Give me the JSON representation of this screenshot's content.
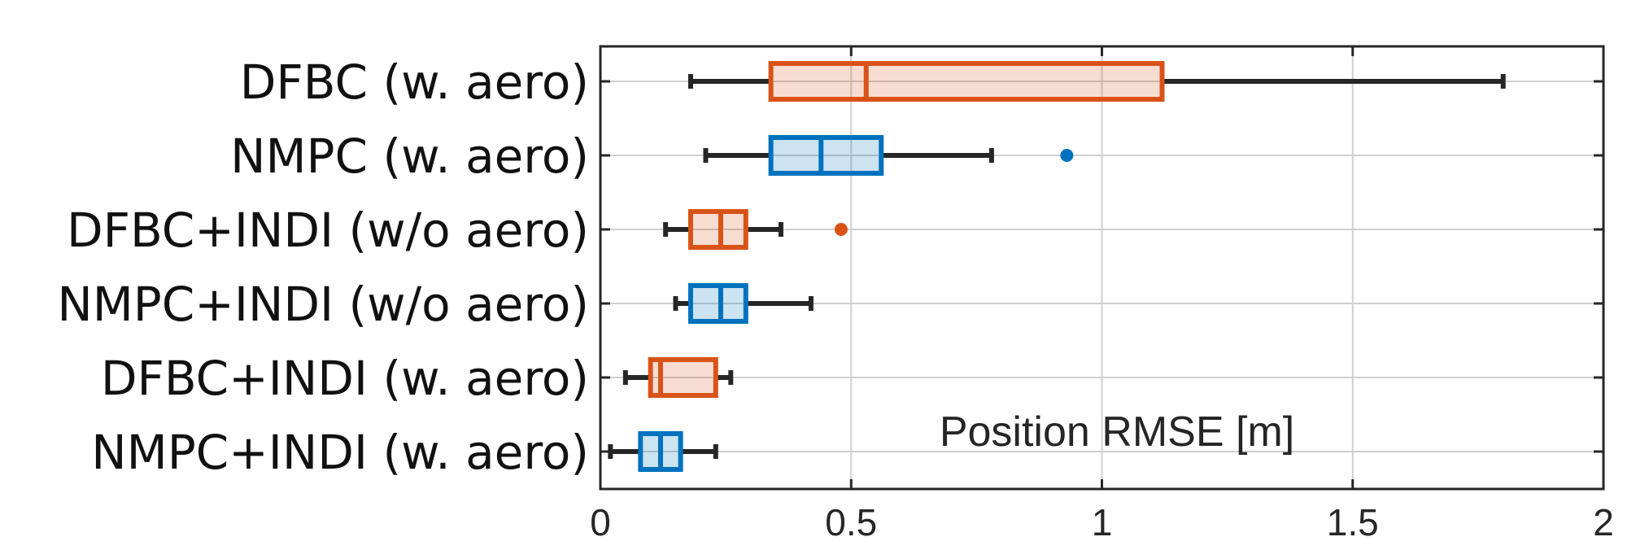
{
  "chart_data": {
    "type": "boxplot",
    "orientation": "horizontal",
    "annotation": "Position RMSE [m]",
    "xlim": [
      0,
      2
    ],
    "xticks": [
      0,
      0.5,
      1,
      1.5,
      2
    ],
    "xtick_labels": [
      "0",
      "0.5",
      "1",
      "1.5",
      "2"
    ],
    "grid": true,
    "colors": {
      "DFBC": "#D95319",
      "NMPC": "#0072BD",
      "whisker": "#262626"
    },
    "categories": [
      "DFBC (w. aero)",
      "NMPC (w. aero)",
      "DFBC+INDI (w/o aero)",
      "NMPC+INDI (w/o aero)",
      "DFBC+INDI (w. aero)",
      "NMPC+INDI (w. aero)"
    ],
    "boxes": [
      {
        "name": "DFBC (w. aero)",
        "group": "DFBC",
        "min": 0.18,
        "q1": 0.34,
        "median": 0.53,
        "q3": 1.12,
        "max": 1.8,
        "outliers": []
      },
      {
        "name": "NMPC (w. aero)",
        "group": "NMPC",
        "min": 0.21,
        "q1": 0.34,
        "median": 0.44,
        "q3": 0.56,
        "max": 0.78,
        "outliers": [
          0.93
        ]
      },
      {
        "name": "DFBC+INDI (w/o aero)",
        "group": "DFBC",
        "min": 0.13,
        "q1": 0.18,
        "median": 0.24,
        "q3": 0.29,
        "max": 0.36,
        "outliers": [
          0.48
        ]
      },
      {
        "name": "NMPC+INDI (w/o aero)",
        "group": "NMPC",
        "min": 0.15,
        "q1": 0.18,
        "median": 0.24,
        "q3": 0.29,
        "max": 0.42,
        "outliers": []
      },
      {
        "name": "DFBC+INDI (w. aero)",
        "group": "DFBC",
        "min": 0.05,
        "q1": 0.1,
        "median": 0.12,
        "q3": 0.23,
        "max": 0.26,
        "outliers": []
      },
      {
        "name": "NMPC+INDI (w. aero)",
        "group": "NMPC",
        "min": 0.02,
        "q1": 0.08,
        "median": 0.12,
        "q3": 0.16,
        "max": 0.23,
        "outliers": []
      }
    ]
  }
}
